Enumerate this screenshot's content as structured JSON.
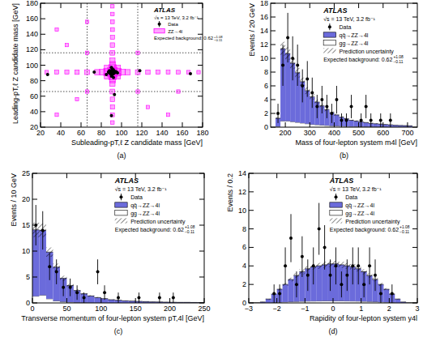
{
  "chart_data": [
    {
      "type": "scatter",
      "panel_label": "(a)",
      "x_label": "Subleading-pT,ℓ Z candidate mass [GeV]",
      "y_label": "Leading-pT,ℓ Z candidate mass [GeV]",
      "xlim": [
        20,
        180
      ],
      "ylim": [
        20,
        180
      ],
      "xticks": [
        20,
        40,
        60,
        80,
        100,
        120,
        140,
        160,
        180
      ],
      "yticks": [
        20,
        40,
        60,
        80,
        100,
        120,
        140,
        160,
        180
      ],
      "grid": false,
      "legend": "upper right",
      "annotations": [
        "ATLAS",
        "√s = 13 TeV, 3.2 fb⁻¹"
      ],
      "background_label": "Expected background: 0.62",
      "background_up": "+1.08",
      "background_down": "−0.11",
      "cut_lines": [
        66,
        116
      ],
      "series": [
        {
          "name": "ZZ→4l",
          "type": "box",
          "color": "#ff00ff",
          "x": [
            91,
            86,
            96,
            91,
            91,
            86,
            96,
            86,
            96,
            26,
            36,
            46,
            56,
            66,
            76,
            81,
            101,
            106,
            116,
            126,
            136,
            146,
            156,
            166,
            176,
            91,
            91,
            91,
            91,
            91,
            91,
            91,
            91,
            91,
            91,
            91,
            91,
            91,
            91,
            91,
            91,
            36,
            56,
            66,
            116,
            46,
            126,
            66,
            156,
            36,
            146,
            116,
            66
          ],
          "y": [
            91,
            91,
            91,
            86,
            96,
            86,
            96,
            96,
            86,
            91,
            91,
            91,
            91,
            91,
            91,
            91,
            91,
            91,
            91,
            91,
            91,
            91,
            91,
            91,
            91,
            26,
            36,
            46,
            56,
            66,
            76,
            81,
            101,
            106,
            116,
            126,
            136,
            146,
            156,
            166,
            176,
            36,
            56,
            66,
            116,
            126,
            46,
            156,
            66,
            146,
            36,
            66,
            116
          ],
          "size": [
            1,
            0.5,
            0.5,
            0.5,
            0.5,
            0.3,
            0.3,
            0.3,
            0.3,
            0.06,
            0.08,
            0.1,
            0.12,
            0.15,
            0.2,
            0.25,
            0.25,
            0.2,
            0.15,
            0.12,
            0.1,
            0.08,
            0.07,
            0.06,
            0.05,
            0.06,
            0.08,
            0.1,
            0.12,
            0.15,
            0.2,
            0.25,
            0.25,
            0.2,
            0.15,
            0.12,
            0.1,
            0.08,
            0.07,
            0.06,
            0.05,
            0.05,
            0.05,
            0.05,
            0.05,
            0.05,
            0.05,
            0.05,
            0.05,
            0.05,
            0.05,
            0.05,
            0.05
          ]
        },
        {
          "name": "Data",
          "type": "scatter",
          "color": "#000000",
          "marker": "circle",
          "x": [
            27,
            73,
            91,
            89,
            90,
            92,
            93,
            88,
            91,
            94,
            90,
            87,
            92,
            89,
            91,
            95,
            90,
            93,
            92,
            88,
            91,
            118,
            168,
            93,
            90,
            85,
            96
          ],
          "y": [
            88,
            91,
            92,
            90,
            93,
            89,
            91,
            90,
            88,
            92,
            86,
            91,
            94,
            89,
            95,
            91,
            97,
            90,
            84,
            93,
            90,
            93,
            89,
            62,
            35,
            88,
            90
          ]
        }
      ]
    },
    {
      "type": "histogram",
      "panel_label": "(b)",
      "x_label": "Mass of four-lepton system m4l [GeV]",
      "y_label": "Events / 20 GeV",
      "xlim": [
        140,
        740
      ],
      "ylim": [
        0,
        18
      ],
      "xticks": [
        200,
        300,
        400,
        500,
        600,
        700
      ],
      "yticks": [
        0,
        2,
        4,
        6,
        8,
        10,
        12,
        14,
        16,
        18
      ],
      "grid": false,
      "legend": "upper right",
      "stacked": true,
      "annotations": [
        "ATLAS",
        "√s = 13 TeV, 3.2 fb⁻¹"
      ],
      "background_label": "Expected background: 0.62",
      "background_up": "+1.08",
      "background_down": "−0.11",
      "bins": [
        160,
        180,
        200,
        220,
        240,
        260,
        280,
        300,
        320,
        340,
        360,
        380,
        400,
        420,
        440,
        460,
        480,
        500,
        520,
        540,
        560,
        580,
        600,
        620,
        640,
        660,
        680,
        700,
        720
      ],
      "series": [
        {
          "name": "gg→ZZ→4l",
          "type": "bar",
          "color": "#ffffff",
          "values": [
            0.1,
            0.9,
            0.9,
            0.8,
            0.7,
            0.6,
            0.5,
            0.4,
            0.35,
            0.3,
            0.25,
            0.2,
            0.18,
            0.15,
            0.12,
            0.1,
            0.09,
            0.08,
            0.07,
            0.06,
            0.05,
            0.05,
            0.04,
            0.04,
            0.03,
            0.03,
            0.03,
            0.02
          ]
        },
        {
          "name": "qq̄→ZZ→4l",
          "type": "bar",
          "color": "#6b6bdb",
          "values": [
            1.2,
            10.5,
            9.8,
            8.5,
            7.2,
            6.0,
            4.8,
            4.0,
            3.3,
            2.8,
            2.3,
            1.9,
            1.6,
            1.3,
            1.1,
            0.9,
            0.8,
            0.7,
            0.6,
            0.5,
            0.45,
            0.4,
            0.35,
            0.3,
            0.25,
            0.22,
            0.2,
            0.18
          ]
        },
        {
          "name": "Prediction uncertainty",
          "type": "band",
          "color": "#000000",
          "values": [
            0.1,
            1.0,
            0.9,
            0.8,
            0.7,
            0.6,
            0.5,
            0.4,
            0.35,
            0.3,
            0.25,
            0.2,
            0.17,
            0.14,
            0.12,
            0.1,
            0.09,
            0.08,
            0.07,
            0.06,
            0.05,
            0.05,
            0.04,
            0.04,
            0.03,
            0.03,
            0.03,
            0.02
          ]
        },
        {
          "name": "Data",
          "type": "scatter",
          "color": "#000000",
          "marker": "circle",
          "x": [
            170,
            190,
            210,
            230,
            250,
            270,
            290,
            310,
            330,
            350,
            370,
            390,
            410,
            430,
            450,
            470,
            510,
            530,
            550,
            590,
            630
          ],
          "values": [
            2,
            9,
            13,
            10,
            9,
            6,
            7,
            5,
            3,
            4,
            3,
            2,
            4,
            1,
            1,
            3,
            1,
            3,
            1,
            1,
            1
          ],
          "errors": [
            1.4,
            3,
            3.6,
            3.2,
            3,
            2.4,
            2.6,
            2.2,
            1.7,
            2,
            1.7,
            1.4,
            2,
            1,
            1,
            1.7,
            1,
            1.7,
            1,
            1,
            1
          ]
        }
      ]
    },
    {
      "type": "histogram",
      "panel_label": "(c)",
      "x_label": "Transverse momentum of four-lepton system pT,4l [GeV]",
      "y_label": "Events / 10 GeV",
      "xlim": [
        0,
        250
      ],
      "ylim": [
        0,
        25
      ],
      "xticks": [
        0,
        50,
        100,
        150,
        200,
        250
      ],
      "yticks": [
        0,
        5,
        10,
        15,
        20,
        25
      ],
      "grid": false,
      "legend": "upper right",
      "stacked": true,
      "annotations": [
        "ATLAS",
        "√s = 13 TeV, 3.2 fb⁻¹"
      ],
      "background_label": "Expected background: 0.62",
      "background_up": "+1.08",
      "background_down": "−0.11",
      "bins": [
        0,
        10,
        20,
        30,
        40,
        50,
        60,
        70,
        80,
        90,
        100,
        110,
        120,
        130,
        140,
        150,
        160,
        170,
        180,
        190,
        200,
        210,
        220,
        230,
        240,
        250
      ],
      "series": [
        {
          "name": "gg→ZZ→4l",
          "type": "bar",
          "color": "#ffffff",
          "values": [
            1.3,
            1.5,
            0.8,
            0.4,
            0.25,
            0.15,
            0.1,
            0.07,
            0.05,
            0.04,
            0.03,
            0.02,
            0.02,
            0.02,
            0.01,
            0.01,
            0.01,
            0.01,
            0.01,
            0.01,
            0.01,
            0.01,
            0.01,
            0.01,
            0.01
          ]
        },
        {
          "name": "qq̄→ZZ→4l",
          "type": "bar",
          "color": "#6b6bdb",
          "values": [
            12.8,
            12.5,
            9.0,
            6.5,
            4.5,
            3.2,
            2.3,
            1.7,
            1.3,
            1.0,
            0.8,
            0.6,
            0.5,
            0.4,
            0.35,
            0.3,
            0.25,
            0.2,
            0.18,
            0.15,
            0.12,
            0.1,
            0.1,
            0.08,
            0.07
          ]
        },
        {
          "name": "Prediction uncertainty",
          "type": "band",
          "color": "#000000",
          "values": [
            1.4,
            1.3,
            0.9,
            0.7,
            0.5,
            0.35,
            0.25,
            0.18,
            0.14,
            0.1,
            0.08,
            0.06,
            0.05,
            0.04,
            0.04,
            0.03,
            0.03,
            0.02,
            0.02,
            0.02,
            0.01,
            0.01,
            0.01,
            0.01,
            0.01
          ]
        },
        {
          "name": "Data",
          "type": "scatter",
          "color": "#000000",
          "marker": "circle",
          "x": [
            5,
            15,
            25,
            35,
            45,
            55,
            65,
            75,
            95,
            105,
            125,
            155,
            185,
            205
          ],
          "values": [
            15,
            14,
            7,
            6,
            3,
            3,
            2,
            1,
            6,
            2,
            1,
            1,
            1,
            1
          ],
          "errors": [
            3.9,
            3.7,
            2.6,
            2.4,
            1.7,
            1.7,
            1.4,
            1,
            2.4,
            1.4,
            1,
            1,
            1,
            1
          ]
        }
      ]
    },
    {
      "type": "histogram",
      "panel_label": "(d)",
      "x_label": "Rapidity of four-lepton system y4l",
      "y_label": "Events / 0.2",
      "xlim": [
        -3,
        3
      ],
      "ylim": [
        0,
        14
      ],
      "xticks": [
        {
          "value": -3,
          "label": "−3"
        },
        {
          "value": -2,
          "label": "−2"
        },
        {
          "value": -1,
          "label": "−1"
        },
        0,
        1,
        2,
        3
      ],
      "yticks": [
        0,
        2,
        4,
        6,
        8,
        10,
        12,
        14
      ],
      "grid": false,
      "legend": "upper right",
      "stacked": true,
      "annotations": [
        "ATLAS",
        "√s = 13 TeV, 3.2 fb⁻¹"
      ],
      "background_label": "Expected background: 0.62",
      "background_up": "+1.08",
      "background_down": "−0.11",
      "bins": [
        -3,
        -2.8,
        -2.6,
        -2.4,
        -2.2,
        -2,
        -1.8,
        -1.6,
        -1.4,
        -1.2,
        -1,
        -0.8,
        -0.6,
        -0.4,
        -0.2,
        0,
        0.2,
        0.4,
        0.6,
        0.8,
        1,
        1.2,
        1.4,
        1.6,
        1.8,
        2,
        2.2,
        2.4,
        2.6,
        2.8,
        3
      ],
      "series": [
        {
          "name": "gg→ZZ→4l",
          "type": "bar",
          "color": "#ffffff",
          "values": [
            0,
            0,
            0,
            0.02,
            0.05,
            0.08,
            0.1,
            0.13,
            0.15,
            0.17,
            0.19,
            0.2,
            0.21,
            0.22,
            0.22,
            0.22,
            0.22,
            0.21,
            0.2,
            0.19,
            0.17,
            0.15,
            0.13,
            0.1,
            0.08,
            0.05,
            0.02,
            0,
            0,
            0
          ]
        },
        {
          "name": "qq̄→ZZ→4l",
          "type": "bar",
          "color": "#6b6bdb",
          "values": [
            0,
            0,
            0.1,
            0.4,
            0.9,
            1.4,
            1.9,
            2.4,
            2.8,
            3.2,
            3.5,
            3.7,
            3.8,
            3.9,
            4.0,
            4.0,
            3.9,
            3.8,
            3.7,
            3.5,
            3.2,
            2.8,
            2.4,
            1.9,
            1.4,
            0.9,
            0.4,
            0.1,
            0,
            0
          ]
        },
        {
          "name": "Prediction uncertainty",
          "type": "band",
          "color": "#000000",
          "values": [
            0,
            0,
            0.01,
            0.04,
            0.08,
            0.12,
            0.16,
            0.2,
            0.24,
            0.27,
            0.29,
            0.31,
            0.32,
            0.33,
            0.34,
            0.34,
            0.33,
            0.32,
            0.31,
            0.29,
            0.27,
            0.24,
            0.2,
            0.16,
            0.12,
            0.08,
            0.04,
            0.01,
            0,
            0
          ]
        },
        {
          "name": "Data",
          "type": "scatter",
          "color": "#000000",
          "marker": "circle",
          "x": [
            -2.1,
            -1.9,
            -1.7,
            -1.5,
            -1.3,
            -1.1,
            -0.9,
            -0.7,
            -0.5,
            -0.3,
            -0.1,
            0.1,
            0.3,
            0.5,
            0.7,
            0.9,
            1.1,
            1.3,
            1.5,
            1.7,
            2.1
          ],
          "values": [
            1,
            1,
            4,
            7,
            2,
            5,
            3,
            4,
            8,
            6,
            3,
            4,
            2,
            3,
            4,
            4,
            2,
            4,
            3,
            1,
            1
          ],
          "errors": [
            1,
            1,
            2,
            2.6,
            1.4,
            2.2,
            1.7,
            2,
            2.8,
            2.4,
            1.7,
            2,
            1.4,
            1.7,
            2,
            2,
            1.4,
            2,
            1.7,
            1,
            1
          ]
        }
      ]
    }
  ]
}
